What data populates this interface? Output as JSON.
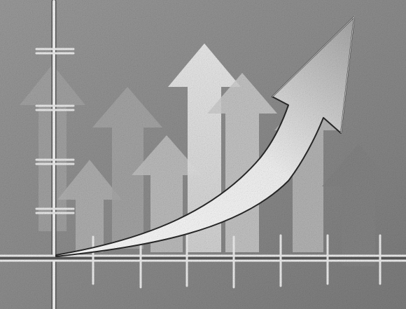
{
  "scene": {
    "subject": "growth-arrows-illustration",
    "style": "grayscale-grainy",
    "colors": {
      "background": "#8f8f8f",
      "gridline": "#f2f2f2",
      "gridline_shadow": "#5a5a5a",
      "arrow_light": "#e6e6e6",
      "arrow_mid": "#b8b8b8",
      "arrow_dark": "#9a9a9a",
      "curve_arrow_fill": "#ffffff",
      "curve_arrow_outline": "#2a2a2a"
    },
    "background_arrows_count": 7,
    "x_axis_tick_count": 8,
    "y_axis_bar_count": 5
  }
}
